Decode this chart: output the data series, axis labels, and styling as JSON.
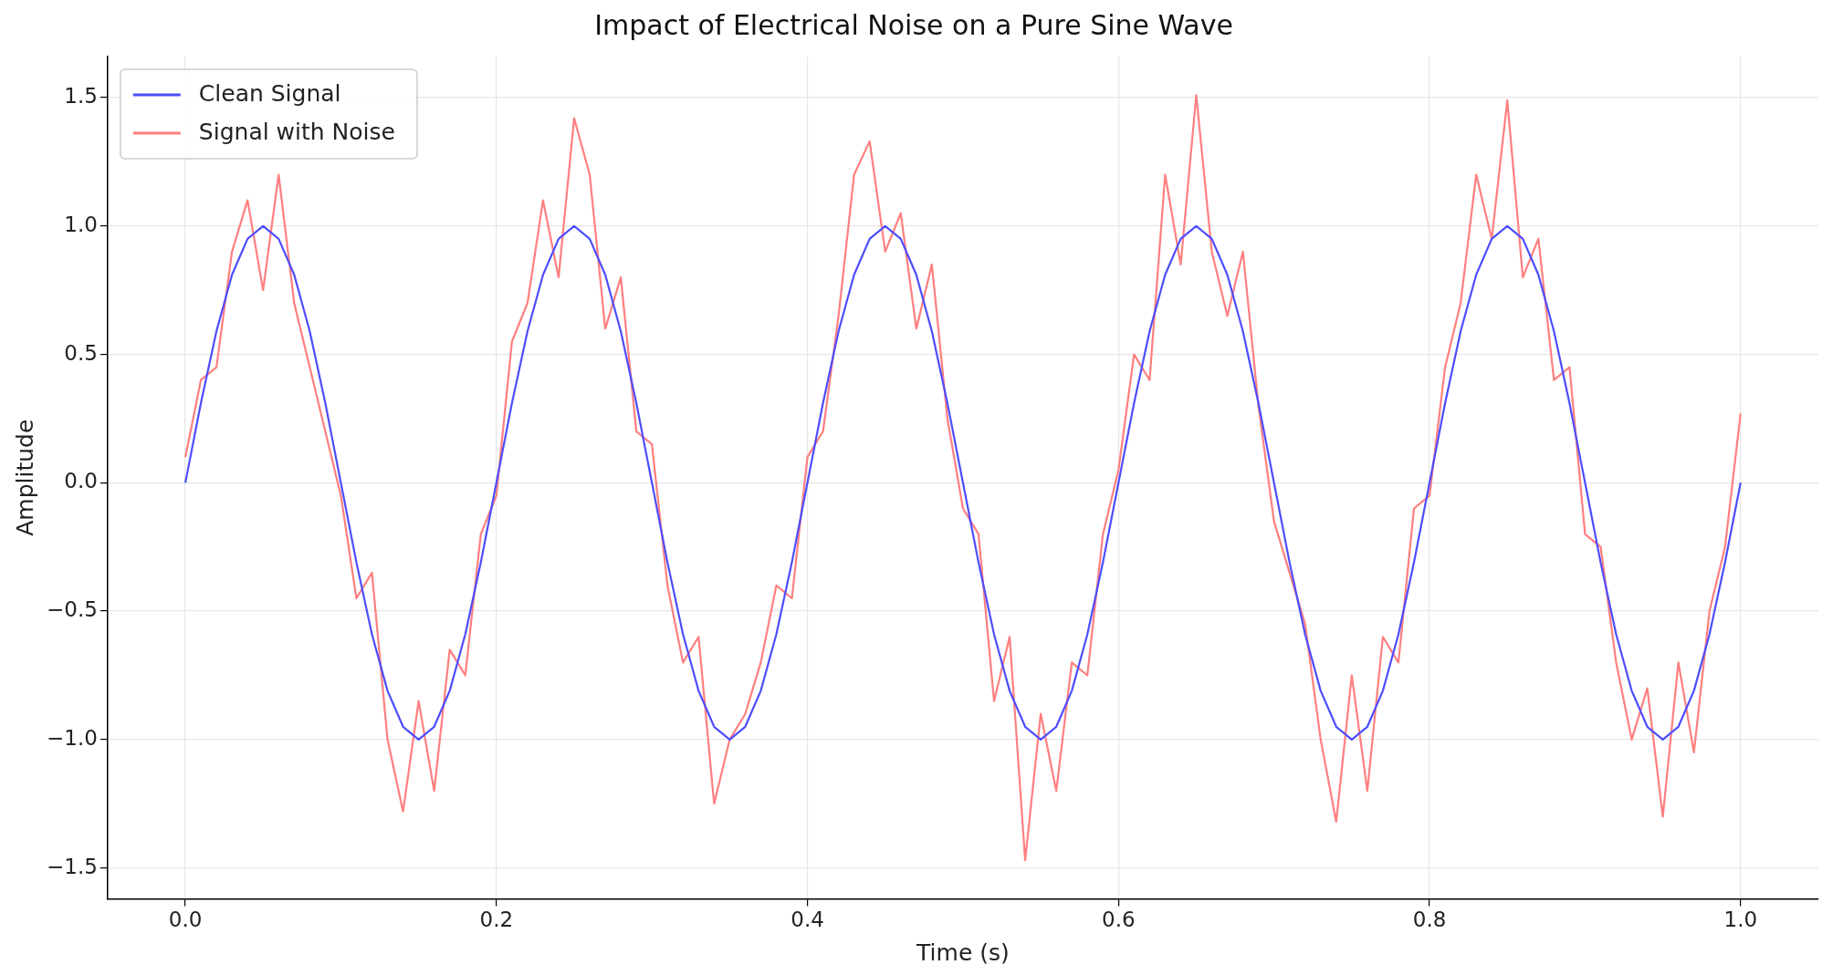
{
  "chart_data": {
    "type": "line",
    "title": "Impact of Electrical Noise on a Pure Sine Wave",
    "xlabel": "Time (s)",
    "ylabel": "Amplitude",
    "x": [
      0,
      0.01,
      0.02,
      0.03,
      0.04,
      0.05,
      0.06,
      0.07,
      0.08,
      0.09,
      0.1,
      0.11,
      0.12,
      0.13,
      0.14,
      0.15,
      0.16,
      0.17,
      0.18,
      0.19,
      0.2,
      0.21,
      0.22,
      0.23,
      0.24,
      0.25,
      0.26,
      0.27,
      0.28,
      0.29,
      0.3,
      0.31,
      0.32,
      0.33,
      0.34,
      0.35,
      0.36,
      0.37,
      0.38,
      0.39,
      0.4,
      0.41,
      0.42,
      0.43,
      0.44,
      0.45,
      0.46,
      0.47,
      0.48,
      0.49,
      0.5,
      0.51,
      0.52,
      0.53,
      0.54,
      0.55,
      0.56,
      0.57,
      0.58,
      0.59,
      0.6,
      0.61,
      0.62,
      0.63,
      0.64,
      0.65,
      0.66,
      0.67,
      0.68,
      0.69,
      0.7,
      0.71,
      0.72,
      0.73,
      0.74,
      0.75,
      0.76,
      0.77,
      0.78,
      0.79,
      0.8,
      0.81,
      0.82,
      0.83,
      0.84,
      0.85,
      0.86,
      0.87,
      0.88,
      0.89,
      0.9,
      0.91,
      0.92,
      0.93,
      0.94,
      0.95,
      0.96,
      0.97,
      0.98,
      0.99,
      1
    ],
    "series": [
      {
        "name": "Clean Signal",
        "color": "#4d4dff",
        "values": [
          0,
          0.31,
          0.59,
          0.81,
          0.95,
          1,
          0.95,
          0.81,
          0.59,
          0.31,
          0,
          -0.31,
          -0.59,
          -0.81,
          -0.95,
          -1,
          -0.95,
          -0.81,
          -0.59,
          -0.31,
          0,
          0.31,
          0.59,
          0.81,
          0.95,
          1,
          0.95,
          0.81,
          0.59,
          0.31,
          0,
          -0.31,
          -0.59,
          -0.81,
          -0.95,
          -1,
          -0.95,
          -0.81,
          -0.59,
          -0.31,
          0,
          0.31,
          0.59,
          0.81,
          0.95,
          1,
          0.95,
          0.81,
          0.59,
          0.31,
          0,
          -0.31,
          -0.59,
          -0.81,
          -0.95,
          -1,
          -0.95,
          -0.81,
          -0.59,
          -0.31,
          0,
          0.31,
          0.59,
          0.81,
          0.95,
          1,
          0.95,
          0.81,
          0.59,
          0.31,
          0,
          -0.31,
          -0.59,
          -0.81,
          -0.95,
          -1,
          -0.95,
          -0.81,
          -0.59,
          -0.31,
          0,
          0.31,
          0.59,
          0.81,
          0.95,
          1,
          0.95,
          0.81,
          0.59,
          0.31,
          0,
          -0.31,
          -0.59,
          -0.81,
          -0.95,
          -1,
          -0.95,
          -0.81,
          -0.59,
          -0.31,
          0
        ]
      },
      {
        "name": "Signal with Noise",
        "color": "#ff7f7f",
        "values": [
          0.1,
          0.4,
          0.45,
          0.9,
          1.1,
          0.75,
          1.2,
          0.7,
          0.45,
          0.2,
          -0.05,
          -0.45,
          -0.35,
          -1.0,
          -1.28,
          -0.85,
          -1.2,
          -0.65,
          -0.75,
          -0.2,
          -0.05,
          0.55,
          0.7,
          1.1,
          0.8,
          1.42,
          1.2,
          0.6,
          0.8,
          0.2,
          0.15,
          -0.4,
          -0.7,
          -0.6,
          -1.25,
          -1.0,
          -0.9,
          -0.7,
          -0.4,
          -0.45,
          0.1,
          0.2,
          0.65,
          1.2,
          1.33,
          0.9,
          1.05,
          0.6,
          0.85,
          0.25,
          -0.1,
          -0.2,
          -0.85,
          -0.6,
          -1.47,
          -0.9,
          -1.2,
          -0.7,
          -0.75,
          -0.2,
          0.05,
          0.5,
          0.4,
          1.2,
          0.85,
          1.51,
          0.9,
          0.65,
          0.9,
          0.3,
          -0.15,
          -0.35,
          -0.55,
          -1.0,
          -1.32,
          -0.75,
          -1.2,
          -0.6,
          -0.7,
          -0.1,
          -0.05,
          0.45,
          0.7,
          1.2,
          0.95,
          1.49,
          0.8,
          0.95,
          0.4,
          0.45,
          -0.2,
          -0.25,
          -0.7,
          -1.0,
          -0.8,
          -1.3,
          -0.7,
          -1.05,
          -0.5,
          -0.25,
          0.27
        ]
      }
    ],
    "xlim": [
      -0.05,
      1.05
    ],
    "xticks": [
      {
        "value": 0,
        "label": "0.0"
      },
      0.2,
      0.4,
      0.6,
      0.8,
      {
        "value": 1,
        "label": "1.0"
      }
    ],
    "ylim": [
      -1.62,
      1.66
    ],
    "yticks": [
      {
        "value": -1.5,
        "label": "−1.5"
      },
      {
        "value": -1,
        "label": "−1.0"
      },
      {
        "value": -0.5,
        "label": "−0.5"
      },
      {
        "value": 0,
        "label": "0.0"
      },
      0.5,
      {
        "value": 1,
        "label": "1.0"
      },
      1.5
    ],
    "grid": true,
    "legend": "top left",
    "line_style": "solid",
    "marker": "none"
  }
}
